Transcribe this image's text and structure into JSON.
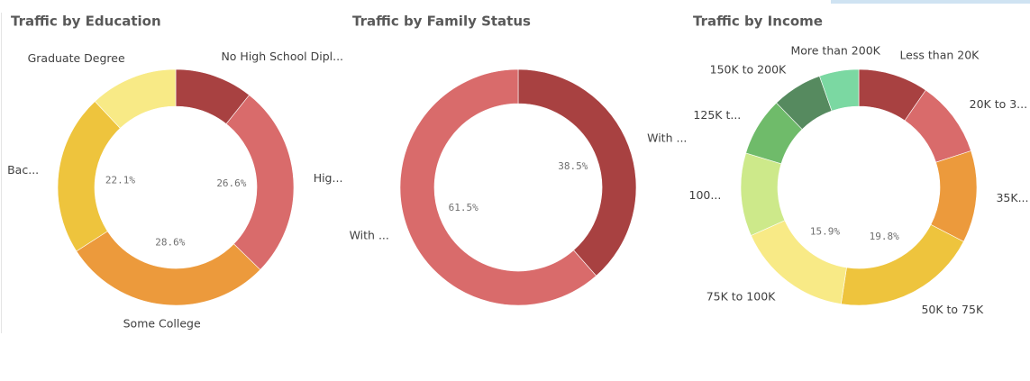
{
  "chart_data": [
    {
      "type": "pie",
      "title": "Traffic by Education",
      "categories": [
        "No High School Dipl...",
        "Hig...",
        "Some College",
        "Bac...",
        "Graduate Degree"
      ],
      "values": [
        10.7,
        26.6,
        28.6,
        22.1,
        12.0
      ],
      "value_labels": [
        null,
        "26.6%",
        "28.6%",
        "22.1%",
        null
      ],
      "colors": [
        "#a84141",
        "#d96b6b",
        "#ec9a3c",
        "#eec43d",
        "#f8ea86"
      ]
    },
    {
      "type": "pie",
      "title": "Traffic by Family Status",
      "categories": [
        "With ...",
        "With ..."
      ],
      "values": [
        38.5,
        61.5
      ],
      "value_labels": [
        "38.5%",
        "61.5%"
      ],
      "colors": [
        "#a84141",
        "#d96b6b"
      ]
    },
    {
      "type": "pie",
      "title": "Traffic by Income",
      "categories": [
        "Less than 20K",
        "20K to 3...",
        "35K...",
        "50K to 75K",
        "75K to 100K",
        "100...",
        "125K t...",
        "150K to 200K",
        "More than 200K"
      ],
      "values": [
        9.6,
        10.4,
        12.6,
        19.8,
        15.9,
        11.4,
        8.0,
        6.9,
        5.4
      ],
      "value_labels": [
        null,
        null,
        null,
        "19.8%",
        "15.9%",
        null,
        null,
        null,
        null
      ],
      "colors": [
        "#a84141",
        "#d96b6b",
        "#ec9a3c",
        "#eec43d",
        "#f8ea86",
        "#cde98a",
        "#6fbb6a",
        "#568a5f",
        "#7bd8a2"
      ]
    }
  ]
}
